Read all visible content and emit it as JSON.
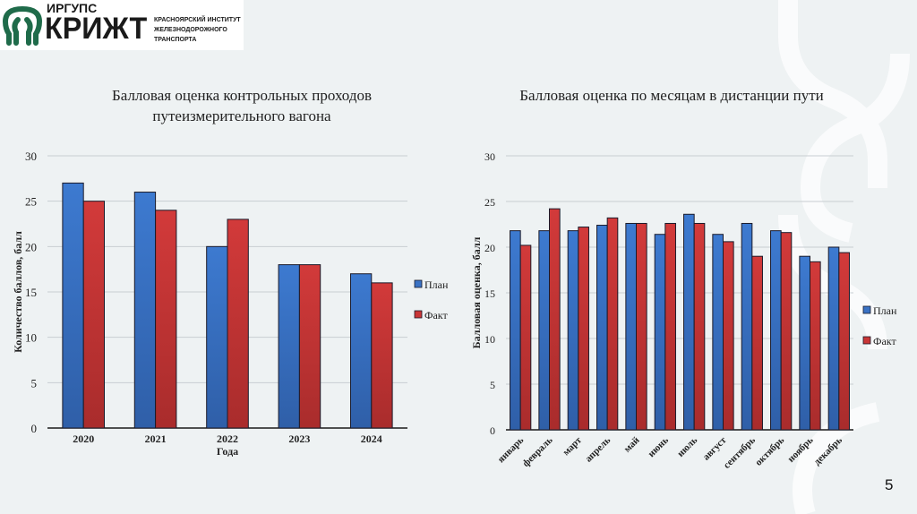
{
  "logo": {
    "top": "ИРГУПС",
    "main": "КРИЖТ",
    "sub": [
      "КРАСНОЯРСКИЙ ИНСТИТУТ",
      "ЖЕЛЕЗНОДОРОЖНОГО",
      "ТРАНСПОРТА"
    ]
  },
  "page_number": "5",
  "colors": {
    "plan": "#3a72c4",
    "fact": "#c93636",
    "grid": "#c8ced2"
  },
  "chart_data": [
    {
      "type": "bar",
      "title": "Балловая оценка контрольных проходов путеизмерительного вагона",
      "title_lines": [
        "Балловая оценка контрольных проходов",
        "путеизмерительного вагона"
      ],
      "xlabel": "Года",
      "ylabel": "Количество баллов, балл",
      "ylim": [
        0,
        30
      ],
      "yticks": [
        "0",
        "5",
        "10",
        "15",
        "20",
        "25",
        "30"
      ],
      "categories": [
        "2020",
        "2021",
        "2022",
        "2023",
        "2024"
      ],
      "series": [
        {
          "name": "План",
          "values": [
            27,
            26,
            20,
            18,
            17
          ]
        },
        {
          "name": "Факт",
          "values": [
            25,
            24,
            23,
            18,
            16
          ]
        }
      ],
      "grid": true,
      "legend": "right"
    },
    {
      "type": "bar",
      "title": "Балловая оценка по месяцам в дистанции пути",
      "xlabel": "",
      "ylabel": "Балловая оценка, балл",
      "ylim": [
        0,
        30
      ],
      "yticks": [
        "0",
        "5",
        "10",
        "15",
        "20",
        "25",
        "30"
      ],
      "categories": [
        "январь",
        "февраль",
        "март",
        "апрель",
        "май",
        "июнь",
        "июль",
        "август",
        "сентябрь",
        "октябрь",
        "ноябрь",
        "декабрь"
      ],
      "series": [
        {
          "name": "План",
          "values": [
            21.8,
            21.8,
            21.8,
            22.4,
            22.6,
            21.4,
            23.6,
            21.4,
            22.6,
            21.8,
            19.0,
            20.0
          ]
        },
        {
          "name": "Факт",
          "values": [
            20.2,
            24.2,
            22.2,
            23.2,
            22.6,
            22.6,
            22.6,
            20.6,
            19.0,
            21.6,
            18.4,
            19.4
          ]
        }
      ],
      "grid": true,
      "legend": "right"
    }
  ]
}
